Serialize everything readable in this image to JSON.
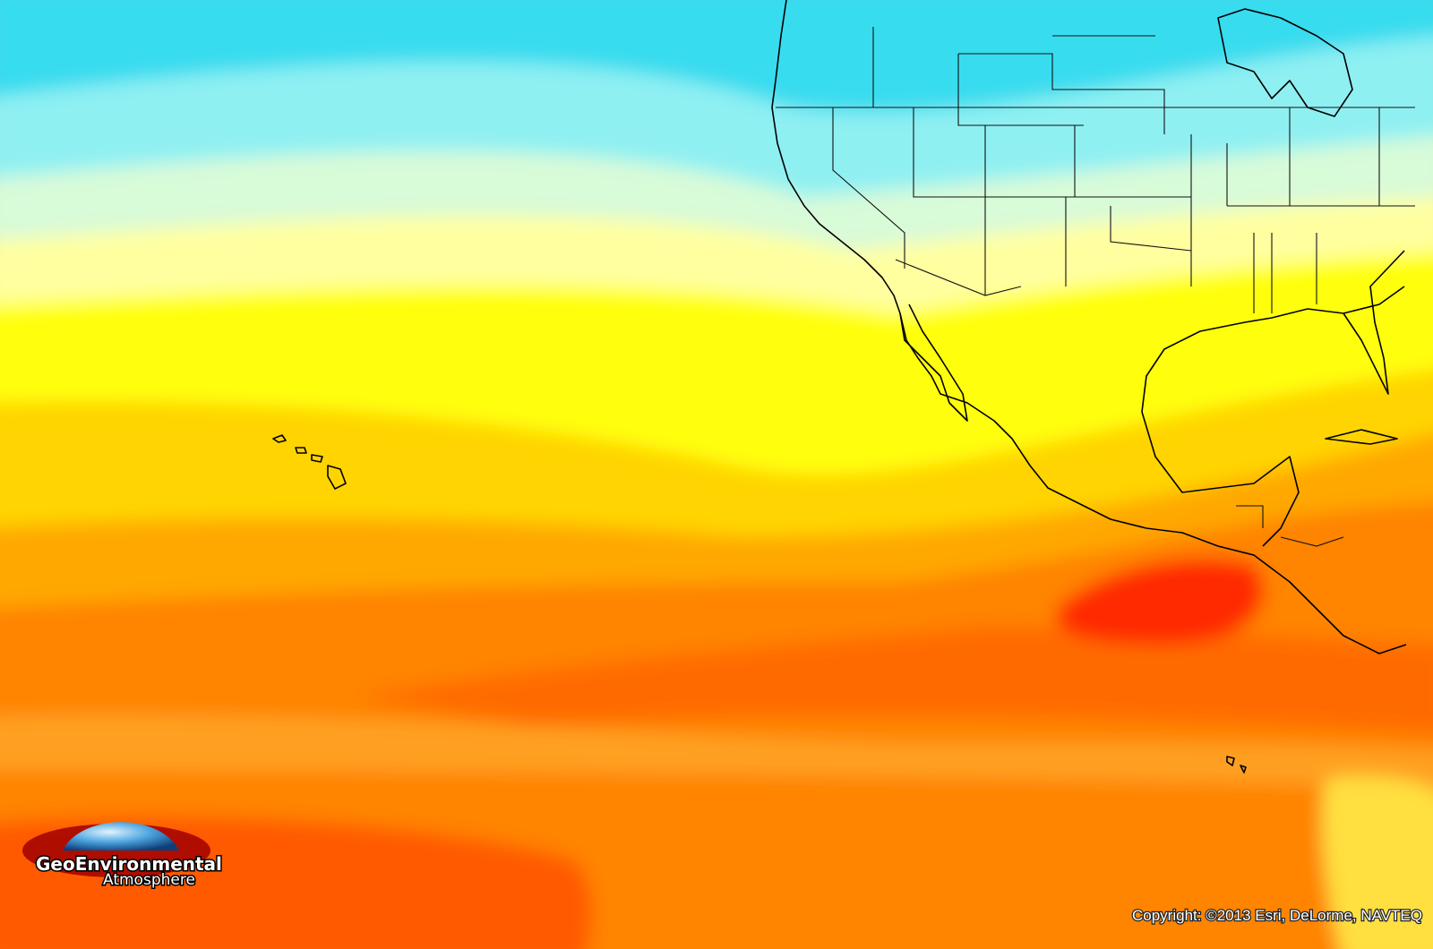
{
  "logo": {
    "name": "GeoEnvironmental",
    "subtitle": "Atmosphere"
  },
  "attribution": "Copyright: ©2013 Esri, DeLorme, NAVTEQ"
}
